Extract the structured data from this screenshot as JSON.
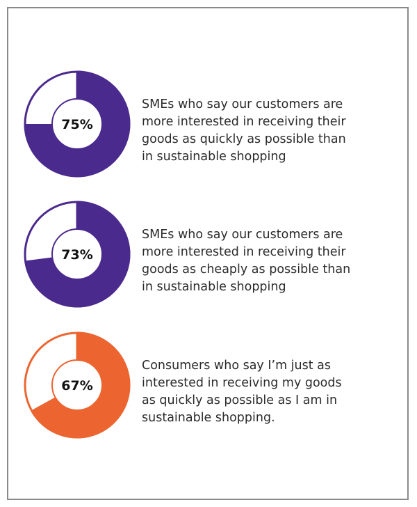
{
  "chart_data": [
    {
      "type": "pie",
      "value": 75,
      "label": "75%",
      "color": "#4b2a8e",
      "description": "SMEs who say our customers are\nmore interested in receiving their\ngoods as quickly as possible than\nin sustainable shopping"
    },
    {
      "type": "pie",
      "value": 73,
      "label": "73%",
      "color": "#4b2a8e",
      "description": "SMEs who say our customers are\nmore interested in receiving their\ngoods as cheaply as possible than\nin sustainable shopping"
    },
    {
      "type": "pie",
      "value": 67,
      "label": "67%",
      "color": "#ec6530",
      "description": "Consumers who say I’m just as\ninterested in receiving my goods\nas quickly as possible as I am in\nsustainable shopping."
    }
  ]
}
